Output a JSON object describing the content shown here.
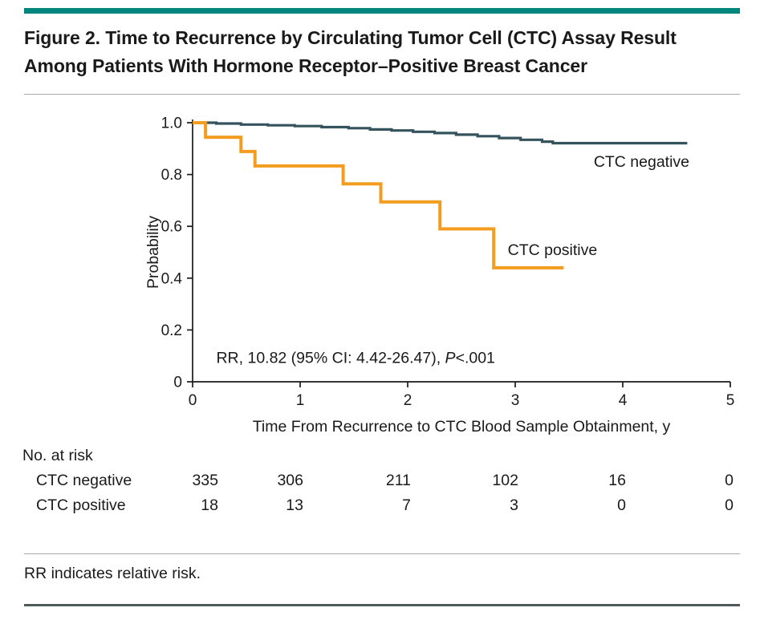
{
  "figure": {
    "title": "Figure 2. Time to Recurrence by Circulating Tumor Cell (CTC) Assay Result Among Patients With Hormone Receptor–Positive Breast Cancer",
    "footnote": "RR indicates relative risk."
  },
  "colors": {
    "accent": "#00857C",
    "rule_light": "#A9A9A9",
    "rule_dark": "#4F585B",
    "text": "#1A1A1A",
    "axis": "#1A1A1A"
  },
  "chart_data": {
    "type": "line",
    "subtype": "kaplan-meier-step",
    "title": "",
    "xlabel": "Time From Recurrence to CTC Blood Sample Obtainment, y",
    "ylabel": "Probability",
    "xlim": [
      0,
      5
    ],
    "ylim": [
      0,
      1.0
    ],
    "grid": false,
    "x_ticks": [
      0,
      1,
      2,
      3,
      4,
      5
    ],
    "x_tick_labels": [
      "0",
      "1",
      "2",
      "3",
      "4",
      "5"
    ],
    "y_ticks": [
      0,
      0.2,
      0.4,
      0.6,
      0.8,
      1.0
    ],
    "y_tick_labels": [
      "0",
      "0.2",
      "0.4",
      "0.6",
      "0.8",
      "1.0"
    ],
    "series": [
      {
        "name": "CTC negative",
        "color": "#35535D",
        "points": [
          [
            0,
            1.0
          ],
          [
            0.22,
            0.997
          ],
          [
            0.45,
            0.993
          ],
          [
            0.7,
            0.99
          ],
          [
            0.95,
            0.987
          ],
          [
            1.2,
            0.983
          ],
          [
            1.45,
            0.979
          ],
          [
            1.65,
            0.974
          ],
          [
            1.85,
            0.97
          ],
          [
            2.05,
            0.965
          ],
          [
            2.25,
            0.96
          ],
          [
            2.45,
            0.954
          ],
          [
            2.65,
            0.948
          ],
          [
            2.85,
            0.941
          ],
          [
            3.05,
            0.934
          ],
          [
            3.25,
            0.927
          ],
          [
            3.35,
            0.921
          ],
          [
            4.6,
            0.921
          ]
        ]
      },
      {
        "name": "CTC positive",
        "color": "#F39C1F",
        "points": [
          [
            0,
            1.0
          ],
          [
            0.12,
            0.944
          ],
          [
            0.45,
            0.889
          ],
          [
            0.58,
            0.833
          ],
          [
            1.4,
            0.764
          ],
          [
            1.75,
            0.694
          ],
          [
            2.3,
            0.59
          ],
          [
            2.8,
            0.44
          ],
          [
            3.45,
            0.44
          ]
        ]
      }
    ],
    "series_labels": [
      {
        "text": "CTC negative",
        "x": 3.73,
        "y": 0.851
      },
      {
        "text": "CTC positive",
        "x": 2.93,
        "y": 0.511
      }
    ],
    "annotation": {
      "prefix": "RR, 10.82 (95% CI: 4.42-26.47), ",
      "italic": "P",
      "suffix": "<.001",
      "x": 0.22,
      "y": 0.095
    },
    "risk_table": {
      "title": "No. at risk",
      "rows": [
        {
          "label": "CTC negative",
          "values": [
            "335",
            "306",
            "211",
            "102",
            "16",
            "0"
          ]
        },
        {
          "label": "CTC positive",
          "values": [
            "18",
            "13",
            "7",
            "3",
            "0",
            "0"
          ]
        }
      ]
    }
  }
}
